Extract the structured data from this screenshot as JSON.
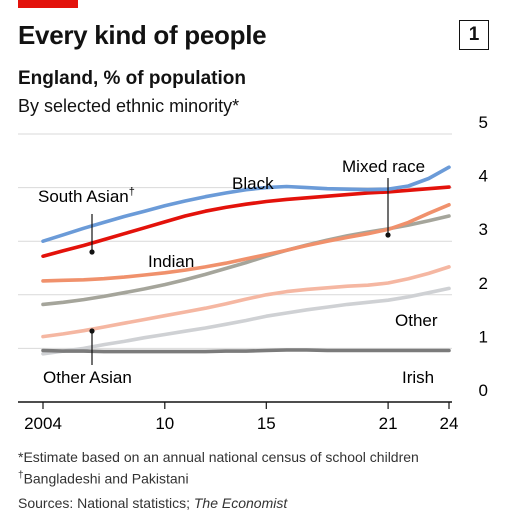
{
  "header": {
    "title": "Every kind of people",
    "chart_number": "1",
    "subtitle": "England, % of population",
    "subtitle2": "By selected ethnic minority*"
  },
  "footnotes": {
    "estimate": "*Estimate based on an annual national census of school children",
    "dagger_mark": "†",
    "dagger_text": "Bangladeshi and Pakistani",
    "sources_prefix": "Sources: National statistics; ",
    "sources_italic": "The Economist"
  },
  "colors": {
    "accent": "#e3120b",
    "black": "#6b9bd8",
    "south_asian": "#e3120b",
    "mixed_race": "#a5a59b",
    "indian": "#f0916c",
    "other_asian": "#f5b7a2",
    "other": "#cfd1d4",
    "irish": "#7b7b7b",
    "grid": "#d9d9d9",
    "axis": "#121212"
  },
  "chart_data": {
    "type": "line",
    "x": [
      2004,
      2005,
      2006,
      2007,
      2008,
      2009,
      2010,
      2011,
      2012,
      2013,
      2014,
      2015,
      2016,
      2017,
      2018,
      2019,
      2020,
      2021,
      2022,
      2023,
      2024
    ],
    "xticks": [
      {
        "value": 2004,
        "label": "2004"
      },
      {
        "value": 2010,
        "label": "10"
      },
      {
        "value": 2015,
        "label": "15"
      },
      {
        "value": 2021,
        "label": "21"
      },
      {
        "value": 2024,
        "label": "24"
      }
    ],
    "ylim": [
      0,
      5
    ],
    "yticks": [
      0,
      1,
      2,
      3,
      4,
      5
    ],
    "grid": true,
    "series": [
      {
        "name": "Other",
        "color_key": "other",
        "values": [
          0.9,
          0.95,
          1.0,
          1.07,
          1.13,
          1.2,
          1.26,
          1.32,
          1.38,
          1.45,
          1.52,
          1.6,
          1.66,
          1.72,
          1.77,
          1.82,
          1.86,
          1.9,
          1.96,
          2.04,
          2.12
        ]
      },
      {
        "name": "Irish",
        "color_key": "irish",
        "values": [
          0.96,
          0.95,
          0.95,
          0.94,
          0.94,
          0.94,
          0.94,
          0.94,
          0.94,
          0.95,
          0.95,
          0.96,
          0.97,
          0.97,
          0.96,
          0.96,
          0.96,
          0.96,
          0.96,
          0.96,
          0.96
        ]
      },
      {
        "name": "Other Asian",
        "color_key": "other_asian",
        "values": [
          1.22,
          1.27,
          1.33,
          1.4,
          1.47,
          1.54,
          1.61,
          1.68,
          1.75,
          1.83,
          1.92,
          2.0,
          2.06,
          2.1,
          2.13,
          2.16,
          2.18,
          2.22,
          2.3,
          2.4,
          2.52
        ]
      },
      {
        "name": "Mixed race",
        "color_key": "mixed_race",
        "values": [
          1.82,
          1.86,
          1.91,
          1.97,
          2.04,
          2.11,
          2.19,
          2.28,
          2.38,
          2.49,
          2.6,
          2.72,
          2.83,
          2.93,
          3.02,
          3.1,
          3.17,
          3.23,
          3.3,
          3.38,
          3.47
        ]
      },
      {
        "name": "Indian",
        "color_key": "indian",
        "values": [
          2.26,
          2.27,
          2.28,
          2.3,
          2.33,
          2.37,
          2.41,
          2.46,
          2.52,
          2.59,
          2.67,
          2.75,
          2.83,
          2.92,
          3.0,
          3.07,
          3.14,
          3.22,
          3.35,
          3.52,
          3.68
        ]
      },
      {
        "name": "South Asian†",
        "color_key": "south_asian",
        "values": [
          2.72,
          2.82,
          2.92,
          3.03,
          3.14,
          3.25,
          3.36,
          3.47,
          3.56,
          3.63,
          3.69,
          3.74,
          3.78,
          3.81,
          3.84,
          3.87,
          3.9,
          3.92,
          3.95,
          3.98,
          4.01
        ]
      },
      {
        "name": "Black",
        "color_key": "black",
        "values": [
          3.0,
          3.12,
          3.24,
          3.35,
          3.46,
          3.56,
          3.66,
          3.75,
          3.83,
          3.9,
          3.96,
          4.0,
          4.02,
          4.0,
          3.98,
          3.97,
          3.96,
          3.97,
          4.03,
          4.17,
          4.38
        ]
      }
    ]
  },
  "labels": {
    "black": "Black",
    "mixed_race": "Mixed race",
    "south_asian": "South Asian",
    "south_asian_mark": "†",
    "indian": "Indian",
    "other": "Other",
    "other_asian": "Other Asian",
    "irish": "Irish"
  }
}
